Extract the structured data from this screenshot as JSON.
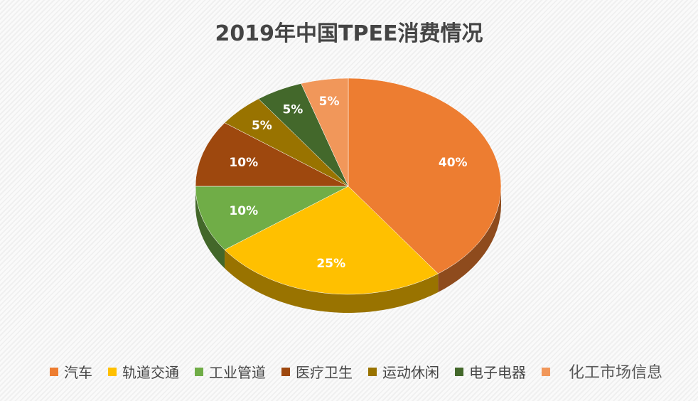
{
  "chart_data": {
    "type": "pie",
    "title": "2019年中国TPEE消费情况",
    "slices": [
      {
        "name": "汽车",
        "value": 40,
        "label": "40%",
        "color": "#ED7D31"
      },
      {
        "name": "轨道交通",
        "value": 25,
        "label": "25%",
        "color": "#FFC000"
      },
      {
        "name": "工业管道",
        "value": 10,
        "label": "10%",
        "color": "#70AD47"
      },
      {
        "name": "医疗卫生",
        "value": 10,
        "label": "10%",
        "color": "#9E480E"
      },
      {
        "name": "运动休闲",
        "value": 5,
        "label": "5%",
        "color": "#997300"
      },
      {
        "name": "电子电器",
        "value": 5,
        "label": "5%",
        "color": "#43682B"
      },
      {
        "name": "",
        "value": 5,
        "label": "5%",
        "color": "#F1975A"
      }
    ],
    "legend_position": "bottom",
    "style": "3d"
  },
  "watermark": "化工市场信息"
}
